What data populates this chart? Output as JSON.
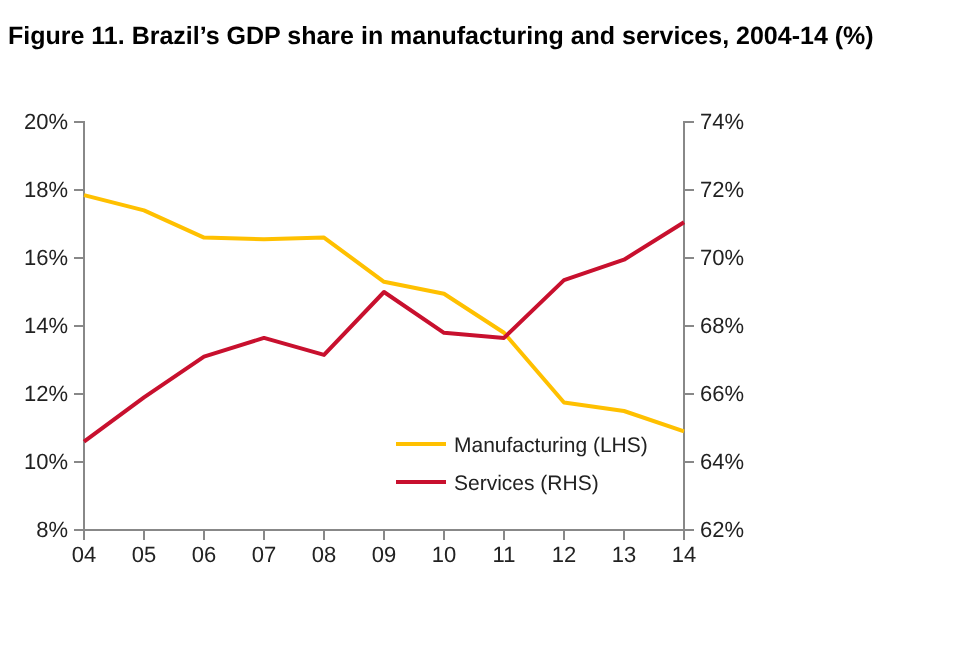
{
  "chart_data": {
    "type": "line",
    "title": "Figure 11. Brazil’s GDP share in manufacturing and services, 2004-14 (%)",
    "categories": [
      "04",
      "05",
      "06",
      "07",
      "08",
      "09",
      "10",
      "11",
      "12",
      "13",
      "14"
    ],
    "series": [
      {
        "name": "Manufacturing (LHS)",
        "color": "#ffc000",
        "values": [
          17.85,
          17.4,
          16.6,
          16.55,
          16.6,
          15.3,
          14.95,
          13.8,
          11.75,
          11.5,
          10.9
        ]
      },
      {
        "name": "Services (RHS)",
        "color": "#c8102e",
        "axis": "y2",
        "values": [
          64.6,
          65.9,
          67.1,
          67.65,
          67.15,
          69.0,
          67.8,
          67.65,
          69.35,
          69.95,
          71.05
        ]
      }
    ],
    "ylim": [
      8,
      20
    ],
    "yticks": [
      {
        "value": 8,
        "label": "8%"
      },
      {
        "value": 10,
        "label": "10%"
      },
      {
        "value": 12,
        "label": "12%"
      },
      {
        "value": 14,
        "label": "14%"
      },
      {
        "value": 16,
        "label": "16%"
      },
      {
        "value": 18,
        "label": "18%"
      },
      {
        "value": 20,
        "label": "20%"
      }
    ],
    "y2lim": [
      62,
      74
    ],
    "y2ticks": [
      {
        "value": 62,
        "label": "62%"
      },
      {
        "value": 64,
        "label": "64%"
      },
      {
        "value": 66,
        "label": "66%"
      },
      {
        "value": 68,
        "label": "68%"
      },
      {
        "value": 70,
        "label": "70%"
      },
      {
        "value": 72,
        "label": "72%"
      },
      {
        "value": 74,
        "label": "74%"
      }
    ],
    "legend": "bottom right",
    "grid": false,
    "marker": "none",
    "line_style": "solid"
  }
}
